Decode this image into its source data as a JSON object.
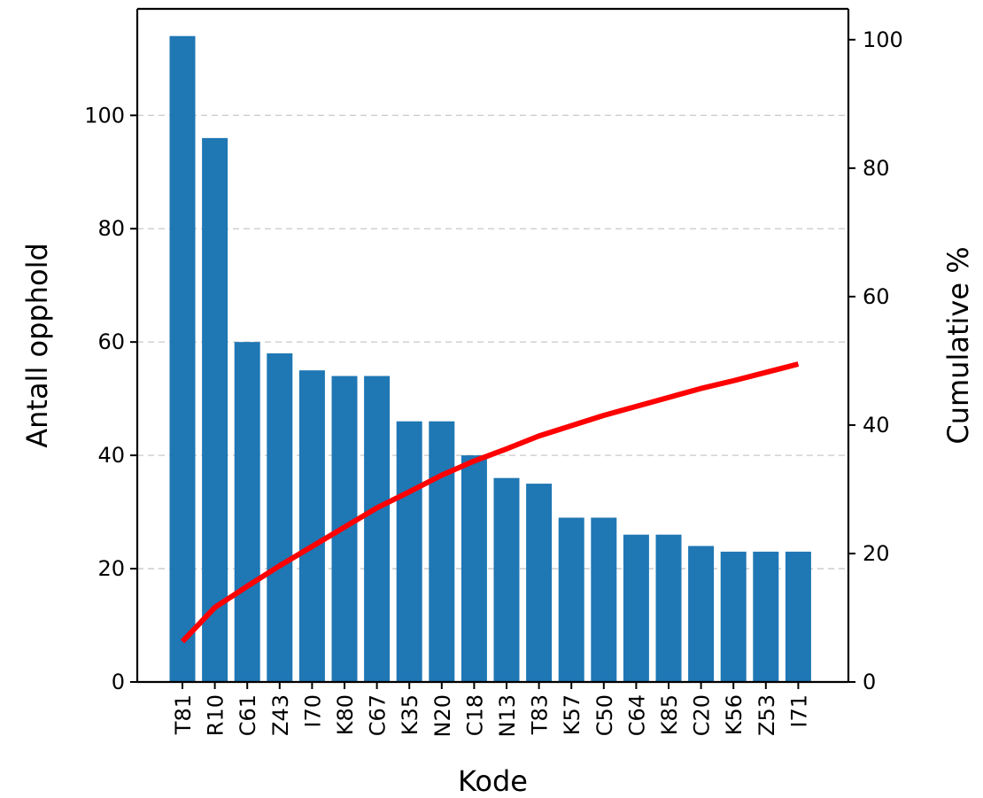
{
  "chart_data": {
    "type": "bar",
    "title": "",
    "xlabel": "Kode",
    "ylabel": "Antall opphold",
    "y2label": "Cumulative %",
    "categories": [
      "T81",
      "R10",
      "C61",
      "Z43",
      "I70",
      "K80",
      "C67",
      "K35",
      "N20",
      "C18",
      "N13",
      "T83",
      "K57",
      "C50",
      "C64",
      "K85",
      "C20",
      "K56",
      "Z53",
      "I71"
    ],
    "series": [
      {
        "type": "bar",
        "axis": "left",
        "values": [
          114,
          96,
          60,
          58,
          55,
          54,
          54,
          46,
          46,
          40,
          36,
          35,
          29,
          29,
          26,
          26,
          24,
          23,
          23,
          23
        ]
      },
      {
        "type": "line",
        "axis": "right",
        "values": [
          6.3,
          11.6,
          14.9,
          18.1,
          21.1,
          24.1,
          27.1,
          29.6,
          32.2,
          34.4,
          36.3,
          38.3,
          39.9,
          41.5,
          42.9,
          44.3,
          45.7,
          46.9,
          48.2,
          49.5
        ]
      }
    ],
    "ylim": [
      0,
      118.8
    ],
    "y2lim": [
      0,
      104.8
    ],
    "yticks": [
      0,
      20,
      40,
      60,
      80,
      100
    ],
    "y2ticks": [
      0,
      20,
      40,
      60,
      80,
      100
    ],
    "grid": "horizontal dashed",
    "colors": {
      "bars": "#1f77b4",
      "line": "#ff0000"
    }
  }
}
